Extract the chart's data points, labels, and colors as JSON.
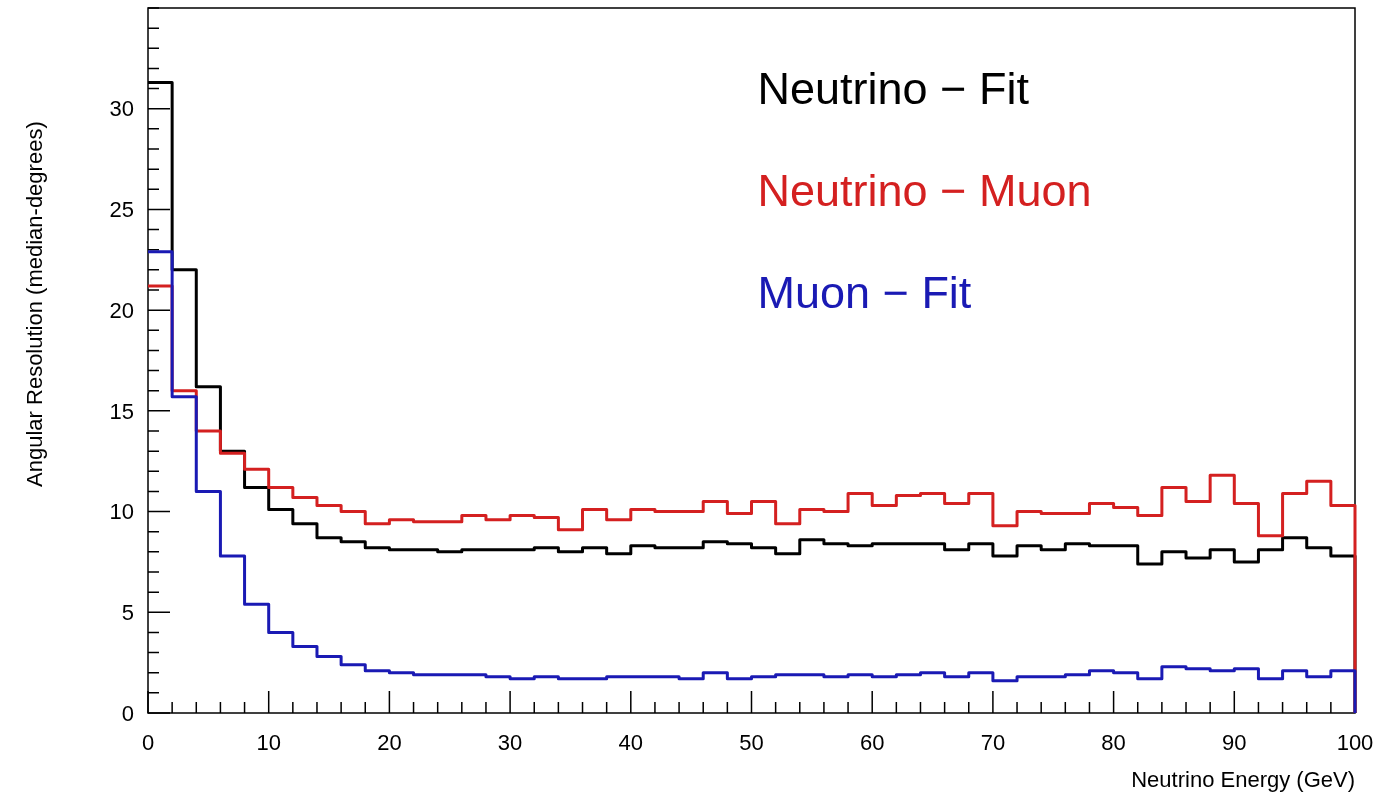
{
  "chart_data": {
    "type": "histogram",
    "xlabel": "Neutrino Energy (GeV)",
    "ylabel": "Angular Resolution (median-degrees)",
    "bins": [
      0,
      2,
      4,
      6,
      8,
      10,
      12,
      14,
      16,
      18,
      20,
      22,
      24,
      26,
      28,
      30,
      32,
      34,
      36,
      38,
      40,
      42,
      44,
      46,
      48,
      50,
      52,
      54,
      56,
      58,
      60,
      62,
      64,
      66,
      68,
      70,
      72,
      74,
      76,
      78,
      80,
      82,
      84,
      86,
      88,
      90,
      92,
      94,
      96,
      98,
      100
    ],
    "xlim": [
      0,
      100
    ],
    "xticks": [
      0,
      10,
      20,
      30,
      40,
      50,
      60,
      70,
      80,
      90,
      100
    ],
    "ylim": [
      0,
      35
    ],
    "yticks": [
      0,
      5,
      10,
      15,
      20,
      25,
      30
    ],
    "legend": "top right",
    "grid": false,
    "series": [
      {
        "name": "Neutrino − Fit",
        "color": "#000000",
        "values": [
          31.3,
          22,
          16.2,
          13,
          11.2,
          10.1,
          9.4,
          8.7,
          8.5,
          8.2,
          8.1,
          8.1,
          8.0,
          8.1,
          8.1,
          8.1,
          8.2,
          8.0,
          8.2,
          7.9,
          8.3,
          8.2,
          8.2,
          8.5,
          8.4,
          8.2,
          7.9,
          8.6,
          8.4,
          8.3,
          8.4,
          8.4,
          8.4,
          8.1,
          8.4,
          7.8,
          8.3,
          8.1,
          8.4,
          8.3,
          8.3,
          7.4,
          8.0,
          7.7,
          8.1,
          7.5,
          8.1,
          8.7,
          8.2,
          7.8
        ]
      },
      {
        "name": "Neutrino − Muon",
        "color": "#d42020",
        "values": [
          21.2,
          16,
          14,
          12.9,
          12.1,
          11.2,
          10.7,
          10.3,
          10.0,
          9.4,
          9.6,
          9.5,
          9.5,
          9.8,
          9.6,
          9.8,
          9.7,
          9.1,
          10.1,
          9.6,
          10.1,
          10.0,
          10.0,
          10.5,
          9.9,
          10.5,
          9.4,
          10.1,
          10.0,
          10.9,
          10.3,
          10.8,
          10.9,
          10.4,
          10.9,
          9.3,
          10.0,
          9.9,
          9.9,
          10.4,
          10.2,
          9.8,
          11.2,
          10.5,
          11.8,
          10.4,
          8.8,
          10.9,
          11.5,
          10.3
        ]
      },
      {
        "name": "Muon − Fit",
        "color": "#1a1ab4",
        "values": [
          22.9,
          15.7,
          11.0,
          7.8,
          5.4,
          4.0,
          3.3,
          2.8,
          2.4,
          2.1,
          2.0,
          1.9,
          1.9,
          1.9,
          1.8,
          1.7,
          1.8,
          1.7,
          1.7,
          1.8,
          1.8,
          1.8,
          1.7,
          2.0,
          1.7,
          1.8,
          1.9,
          1.9,
          1.8,
          1.9,
          1.8,
          1.9,
          2.0,
          1.8,
          2.0,
          1.6,
          1.8,
          1.8,
          1.9,
          2.1,
          2.0,
          1.7,
          2.3,
          2.2,
          2.1,
          2.2,
          1.7,
          2.1,
          1.8,
          2.1
        ]
      }
    ]
  }
}
